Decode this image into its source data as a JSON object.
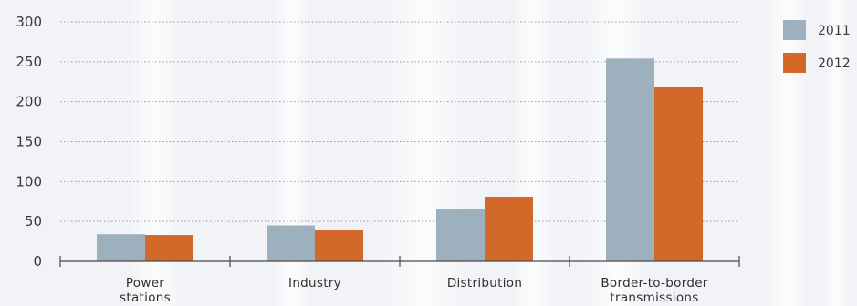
{
  "chart_data": {
    "type": "bar",
    "title": "",
    "xlabel": "",
    "ylabel": "",
    "ylim": [
      0,
      300
    ],
    "yticks": [
      0,
      50,
      100,
      150,
      200,
      250,
      300
    ],
    "grid": true,
    "legend_position": "top-right",
    "categories": [
      [
        "Power",
        "stations"
      ],
      [
        "Industry"
      ],
      [
        "Distribution"
      ],
      [
        "Border-to-border",
        "transmissions"
      ]
    ],
    "series": [
      {
        "name": "2011",
        "color": "#9db0bd",
        "values": [
          34,
          45,
          65,
          254
        ]
      },
      {
        "name": "2012",
        "color": "#d2692a",
        "values": [
          33,
          39,
          81,
          219
        ]
      }
    ]
  }
}
